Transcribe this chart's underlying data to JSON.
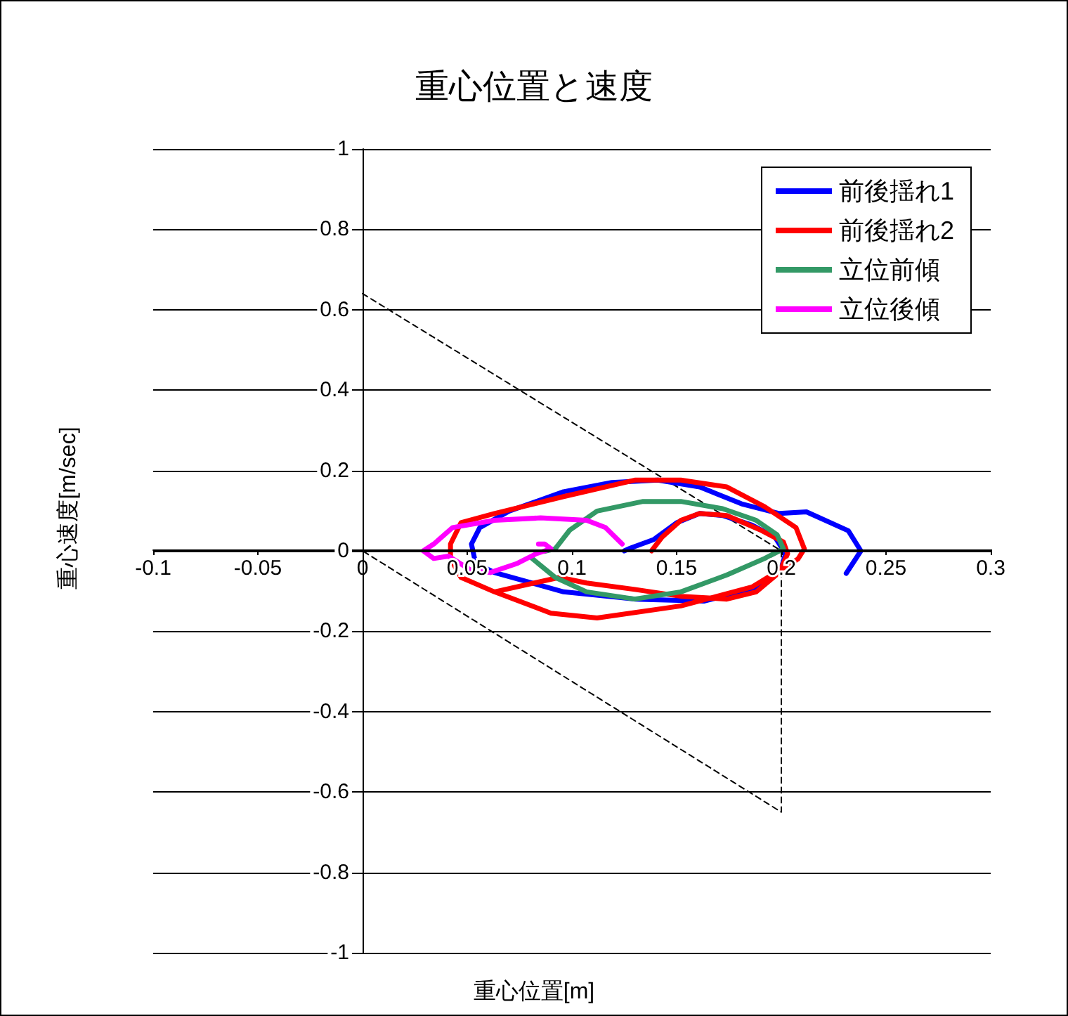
{
  "chart_data": {
    "type": "line",
    "title": "重心位置と速度",
    "xlabel": "重心位置[m]",
    "ylabel": "重心速度[m/sec]",
    "xlim": [
      -0.1,
      0.3
    ],
    "xticks": [
      -0.1,
      -0.05,
      0,
      0.05,
      0.1,
      0.15,
      0.2,
      0.25,
      0.3
    ],
    "ylim": [
      -1,
      1
    ],
    "yticks": [
      -1,
      -0.8,
      -0.6,
      -0.4,
      -0.2,
      0,
      0.2,
      0.4,
      0.6,
      0.8,
      1
    ],
    "grid": "y",
    "legend": "top right",
    "marker": "none",
    "line_style": "solid",
    "series": [
      {
        "name": "前後揺れ1",
        "color": "#0000ff",
        "x": [
          0.125,
          0.128,
          0.139,
          0.15,
          0.161,
          0.172,
          0.186,
          0.197,
          0.202,
          0.2,
          0.19,
          0.163,
          0.13,
          0.096,
          0.063,
          0.054,
          0.052,
          0.056,
          0.07,
          0.096,
          0.119,
          0.141,
          0.161,
          0.181,
          0.199,
          0.212,
          0.232,
          0.238,
          0.231
        ],
        "values": [
          0,
          0.007,
          0.028,
          0.07,
          0.093,
          0.088,
          0.064,
          0.034,
          -0.007,
          -0.043,
          -0.09,
          -0.125,
          -0.12,
          -0.102,
          -0.054,
          -0.031,
          0.017,
          0.058,
          0.099,
          0.147,
          0.17,
          0.176,
          0.159,
          0.117,
          0.093,
          0.097,
          0.05,
          0,
          -0.056
        ]
      },
      {
        "name": "前後揺れ2",
        "color": "#ff0000",
        "x": [
          0.138,
          0.143,
          0.152,
          0.161,
          0.174,
          0.19,
          0.201,
          0.203,
          0.199,
          0.188,
          0.174,
          0.152,
          0.13,
          0.107,
          0.094,
          0.063,
          0.09,
          0.112,
          0.152,
          0.186,
          0.208,
          0.211,
          0.207,
          0.192,
          0.174,
          0.152,
          0.13,
          0.096,
          0.063,
          0.047,
          0.042,
          0.042,
          0.047,
          0.063
        ],
        "values": [
          0,
          0.034,
          0.076,
          0.093,
          0.088,
          0.052,
          0.022,
          -0.007,
          -0.054,
          -0.102,
          -0.12,
          -0.113,
          -0.096,
          -0.08,
          -0.066,
          -0.102,
          -0.155,
          -0.167,
          -0.137,
          -0.09,
          -0.02,
          0.005,
          0.058,
          0.11,
          0.159,
          0.176,
          0.176,
          0.135,
          0.093,
          0.07,
          0.017,
          -0.019,
          -0.066,
          -0.102
        ]
      },
      {
        "name": "立位前傾",
        "color": "#339966",
        "x": [
          0.081,
          0.092,
          0.107,
          0.13,
          0.152,
          0.174,
          0.192,
          0.201,
          0.198,
          0.188,
          0.172,
          0.152,
          0.134,
          0.112,
          0.099,
          0.092,
          0.087
        ],
        "values": [
          -0.019,
          -0.066,
          -0.102,
          -0.12,
          -0.102,
          -0.06,
          -0.019,
          0.005,
          0.04,
          0.076,
          0.105,
          0.123,
          0.123,
          0.099,
          0.052,
          0.005,
          -0.001
        ]
      },
      {
        "name": "立位後傾",
        "color": "#ff00ff",
        "x": [
          0.124,
          0.116,
          0.107,
          0.085,
          0.063,
          0.043,
          0.034,
          0.029,
          0.034,
          0.041,
          0.052,
          0.061,
          0.074,
          0.083,
          0.09,
          0.087,
          0.084
        ],
        "values": [
          0.017,
          0.058,
          0.076,
          0.082,
          0.076,
          0.058,
          0.017,
          0,
          -0.019,
          -0.013,
          -0.049,
          -0.054,
          -0.031,
          -0.007,
          0.005,
          0.017,
          0.017
        ]
      },
      {
        "color": "#000000",
        "line_style": "dashed",
        "x": [
          0,
          0.2,
          0.2,
          0
        ],
        "values": [
          0.64,
          0,
          -0.65,
          0
        ]
      }
    ]
  }
}
